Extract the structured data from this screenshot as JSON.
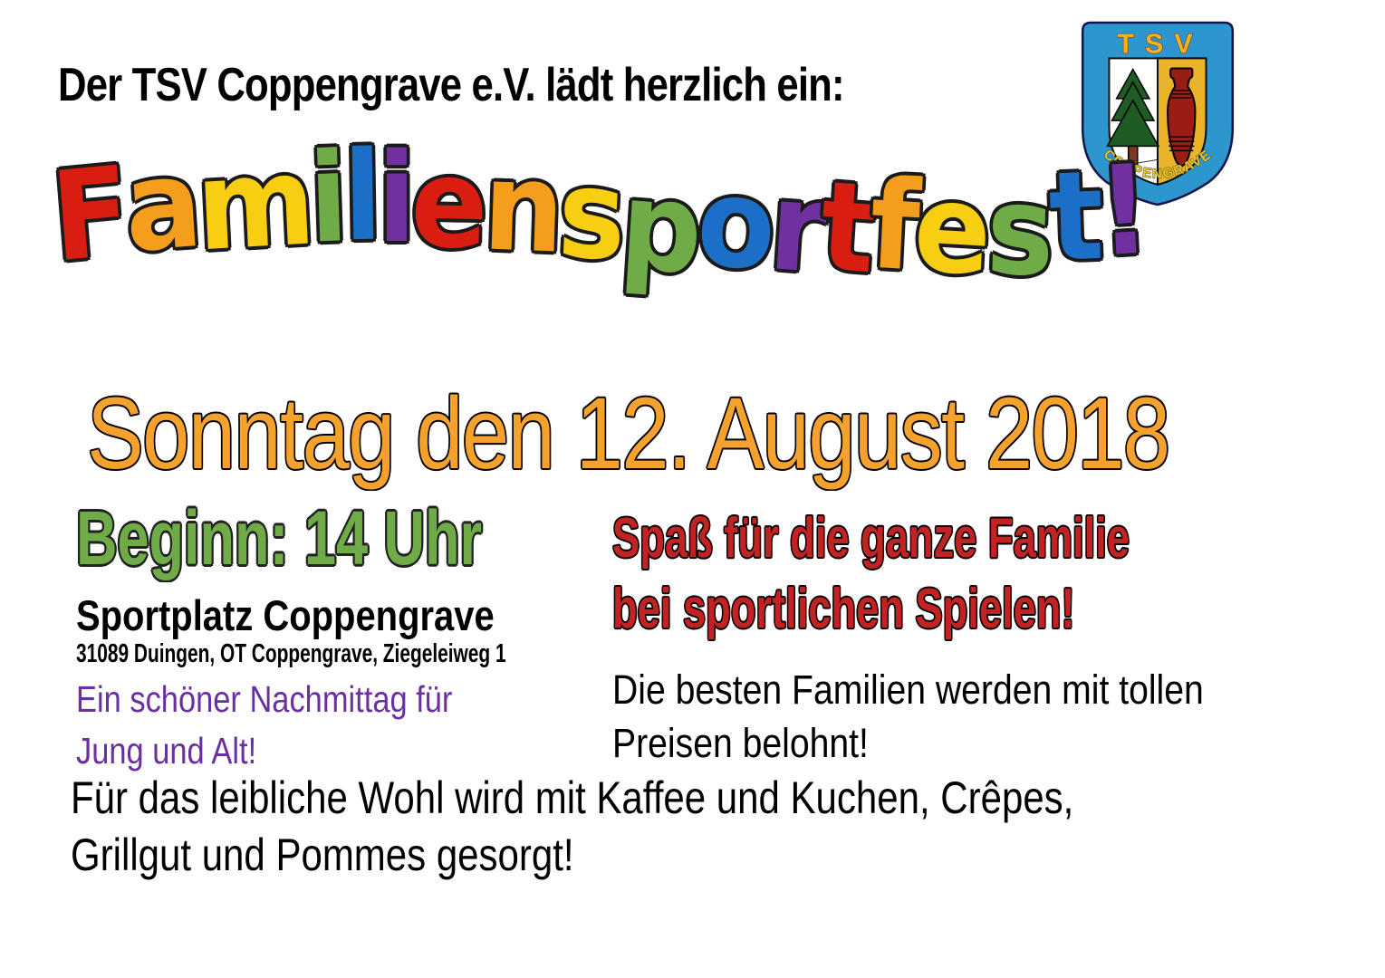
{
  "page": {
    "background": "#ffffff"
  },
  "header": {
    "invite": "Der TSV Coppengrave e.V. lädt herzlich ein:"
  },
  "logo": {
    "club_name": "TSV",
    "club_place": "COPPENGRAVE",
    "colors": {
      "shield_blue": "#2D96CF",
      "gold": "#EBB32A",
      "tree_green": "#1E5C24",
      "trunk_brown": "#7A3A20",
      "vase_red": "#9B1B15",
      "text_yellow": "#F2C12E"
    }
  },
  "title": {
    "text": "Familiensportfest!",
    "letters": [
      {
        "ch": "F",
        "color": "#D81E10"
      },
      {
        "ch": "a",
        "color": "#F59E1E"
      },
      {
        "ch": "m",
        "color": "#F7CE12"
      },
      {
        "ch": "i",
        "color": "#6FAC47"
      },
      {
        "ch": "l",
        "color": "#1C6FC6"
      },
      {
        "ch": "i",
        "color": "#7030A0"
      },
      {
        "ch": "e",
        "color": "#D81E10"
      },
      {
        "ch": "n",
        "color": "#F59E1E"
      },
      {
        "ch": "s",
        "color": "#F7CE12"
      },
      {
        "ch": "p",
        "color": "#6FAC47"
      },
      {
        "ch": "o",
        "color": "#1C6FC6"
      },
      {
        "ch": "r",
        "color": "#7030A0"
      },
      {
        "ch": "t",
        "color": "#D81E10"
      },
      {
        "ch": "f",
        "color": "#F59E1E"
      },
      {
        "ch": "e",
        "color": "#F7CE12"
      },
      {
        "ch": "s",
        "color": "#6FAC47"
      },
      {
        "ch": "t",
        "color": "#1C6FC6"
      },
      {
        "ch": "!",
        "color": "#7030A0"
      }
    ]
  },
  "date_line": {
    "text": "Sonntag den 12. August 2018",
    "color": "#F5A12D"
  },
  "left_column": {
    "begin": {
      "text": "Beginn: 14 Uhr",
      "color": "#6FAC47"
    },
    "venue": "Sportplatz Coppengrave",
    "address": "31089 Duingen, OT Coppengrave, Ziegeleiweg 1",
    "note": {
      "line1": "Ein schöner Nachmittag für",
      "line2": "Jung und Alt!",
      "color": "#6A2FA0"
    }
  },
  "right_column": {
    "fun": {
      "line1": "Spaß für die ganze Familie",
      "line2": "bei sportlichen Spielen!",
      "color": "#C32222"
    },
    "prizes": {
      "line1": "Die besten Familien werden mit tollen",
      "line2": "Preisen belohnt!"
    }
  },
  "footer": {
    "line1": "Für das leibliche Wohl wird mit Kaffee und Kuchen, Crêpes,",
    "line2": "Grillgut und Pommes gesorgt!"
  }
}
